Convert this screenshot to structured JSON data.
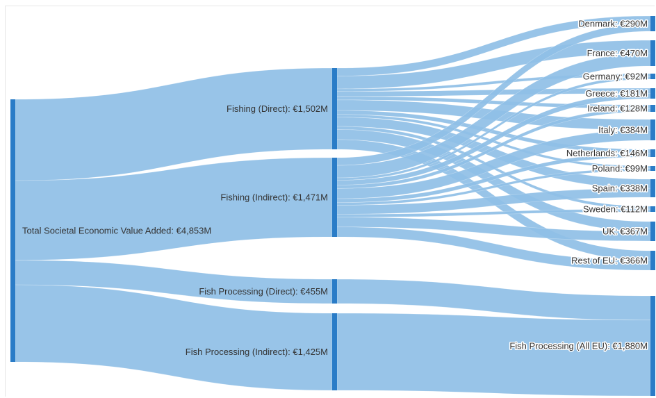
{
  "colors": {
    "node": "#2a7cc7",
    "link": "#8fbfe6",
    "frame": "#e6e6e6",
    "text": "#333333"
  },
  "nodes": {
    "total": "Total Societal Economic Value Added: €4,853M",
    "fishing_direct": "Fishing (Direct): €1,502M",
    "fishing_indirect": "Fishing (Indirect): €1,471M",
    "proc_direct": "Fish Processing (Direct): €455M",
    "proc_indirect": "Fish Processing (Indirect): €1,425M",
    "denmark": "Denmark: €290M",
    "france": "France: €470M",
    "germany": "Germany: €92M",
    "greece": "Greece: €181M",
    "ireland": "Ireland: €128M",
    "italy": "Italy: €384M",
    "netherlands": "Netherlands: €146M",
    "poland": "Poland: €99M",
    "spain": "Spain: €338M",
    "sweden": "Sweden: €112M",
    "uk": "UK: €367M",
    "rest_eu": "Rest of EU: €366M",
    "proc_all_eu": "Fish Processing (All EU): €1,880M"
  },
  "chart_data": {
    "type": "sankey",
    "units": "€M",
    "nodes": [
      {
        "id": "total",
        "value": 4853
      },
      {
        "id": "fishing_direct",
        "value": 1502
      },
      {
        "id": "fishing_indirect",
        "value": 1471
      },
      {
        "id": "proc_direct",
        "value": 455
      },
      {
        "id": "proc_indirect",
        "value": 1425
      },
      {
        "id": "denmark",
        "value": 290
      },
      {
        "id": "france",
        "value": 470
      },
      {
        "id": "germany",
        "value": 92
      },
      {
        "id": "greece",
        "value": 181
      },
      {
        "id": "ireland",
        "value": 128
      },
      {
        "id": "italy",
        "value": 384
      },
      {
        "id": "netherlands",
        "value": 146
      },
      {
        "id": "poland",
        "value": 99
      },
      {
        "id": "spain",
        "value": 338
      },
      {
        "id": "sweden",
        "value": 112
      },
      {
        "id": "uk",
        "value": 367
      },
      {
        "id": "rest_eu",
        "value": 366
      },
      {
        "id": "proc_all_eu",
        "value": 1880
      }
    ],
    "links": [
      {
        "source": "total",
        "target": "fishing_direct",
        "value": 1502
      },
      {
        "source": "total",
        "target": "fishing_indirect",
        "value": 1471
      },
      {
        "source": "total",
        "target": "proc_direct",
        "value": 455
      },
      {
        "source": "total",
        "target": "proc_indirect",
        "value": 1425
      },
      {
        "source": "fishing_direct",
        "target": "denmark",
        "value": 147
      },
      {
        "source": "fishing_direct",
        "target": "france",
        "value": 238
      },
      {
        "source": "fishing_direct",
        "target": "germany",
        "value": 47
      },
      {
        "source": "fishing_direct",
        "target": "greece",
        "value": 92
      },
      {
        "source": "fishing_direct",
        "target": "ireland",
        "value": 65
      },
      {
        "source": "fishing_direct",
        "target": "italy",
        "value": 194
      },
      {
        "source": "fishing_direct",
        "target": "netherlands",
        "value": 74
      },
      {
        "source": "fishing_direct",
        "target": "poland",
        "value": 50
      },
      {
        "source": "fishing_direct",
        "target": "spain",
        "value": 171
      },
      {
        "source": "fishing_direct",
        "target": "sweden",
        "value": 57
      },
      {
        "source": "fishing_direct",
        "target": "uk",
        "value": 186
      },
      {
        "source": "fishing_direct",
        "target": "rest_eu",
        "value": 181
      },
      {
        "source": "fishing_indirect",
        "target": "denmark",
        "value": 143
      },
      {
        "source": "fishing_indirect",
        "target": "france",
        "value": 232
      },
      {
        "source": "fishing_indirect",
        "target": "germany",
        "value": 45
      },
      {
        "source": "fishing_indirect",
        "target": "greece",
        "value": 89
      },
      {
        "source": "fishing_indirect",
        "target": "ireland",
        "value": 63
      },
      {
        "source": "fishing_indirect",
        "target": "italy",
        "value": 190
      },
      {
        "source": "fishing_indirect",
        "target": "netherlands",
        "value": 72
      },
      {
        "source": "fishing_indirect",
        "target": "poland",
        "value": 49
      },
      {
        "source": "fishing_indirect",
        "target": "spain",
        "value": 167
      },
      {
        "source": "fishing_indirect",
        "target": "sweden",
        "value": 55
      },
      {
        "source": "fishing_indirect",
        "target": "uk",
        "value": 181
      },
      {
        "source": "fishing_indirect",
        "target": "rest_eu",
        "value": 185
      },
      {
        "source": "proc_direct",
        "target": "proc_all_eu",
        "value": 455
      },
      {
        "source": "proc_indirect",
        "target": "proc_all_eu",
        "value": 1425
      }
    ]
  }
}
